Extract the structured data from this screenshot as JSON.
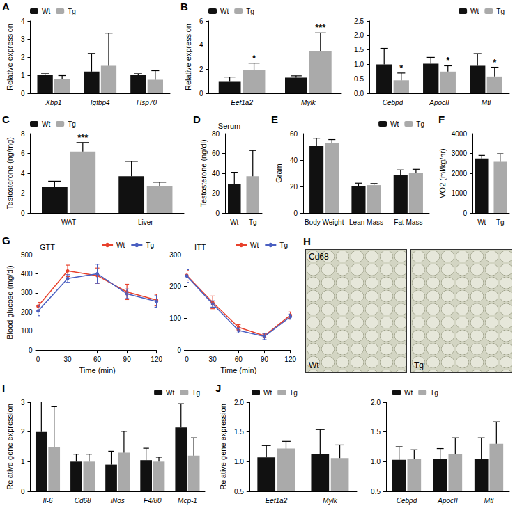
{
  "chart_data": [
    {
      "panel_label": "A",
      "type": "bar",
      "y_label": "Relative expression",
      "categories": [
        "Xbp1",
        "Igfbp4",
        "Hsp70"
      ],
      "series": [
        {
          "name": "Wt",
          "color": "#111111",
          "values": [
            1.0,
            1.2,
            1.0
          ],
          "errors": [
            0.08,
            1.0,
            0.08
          ]
        },
        {
          "name": "Tg",
          "color": "#aaaaaa",
          "values": [
            0.78,
            1.52,
            0.75
          ],
          "errors": [
            0.2,
            1.8,
            0.5
          ]
        }
      ],
      "ylim": [
        0,
        4
      ],
      "yticks": [
        0,
        1,
        2,
        3,
        4
      ],
      "grid": false,
      "legend": "upper-left"
    },
    {
      "panel_label": "B",
      "type": "bar",
      "y_label": "Relative expression",
      "categories": [
        "Eef1a2",
        "Mylk"
      ],
      "series": [
        {
          "name": "Wt",
          "color": "#111111",
          "values": [
            0.95,
            1.3
          ],
          "errors": [
            0.4,
            0.15
          ]
        },
        {
          "name": "Tg",
          "color": "#aaaaaa",
          "values": [
            1.9,
            3.5
          ],
          "errors": [
            0.6,
            1.5
          ]
        }
      ],
      "annotations": [
        {
          "category": "Eef1a2",
          "series": "Tg",
          "text": "*"
        },
        {
          "category": "Mylk",
          "series": "Tg",
          "text": "***"
        }
      ],
      "ylim": [
        0,
        6
      ],
      "yticks": [
        0,
        2,
        4,
        6
      ],
      "grid": false,
      "legend": "upper-left"
    },
    {
      "type": "bar",
      "categories": [
        "Cebpd",
        "ApocII",
        "Mtl"
      ],
      "series": [
        {
          "name": "Wt",
          "color": "#111111",
          "values": [
            1.0,
            1.02,
            0.95
          ],
          "errors": [
            0.55,
            0.22,
            0.42
          ]
        },
        {
          "name": "Tg",
          "color": "#aaaaaa",
          "values": [
            0.45,
            0.75,
            0.58
          ],
          "errors": [
            0.25,
            0.2,
            0.32
          ]
        }
      ],
      "annotations": [
        {
          "category": "Cebpd",
          "series": "Tg",
          "text": "*"
        },
        {
          "category": "ApocII",
          "series": "Tg",
          "text": "*"
        },
        {
          "category": "Mtl",
          "series": "Tg",
          "text": "*"
        }
      ],
      "ylim": [
        0,
        2.5
      ],
      "yticks": [
        {
          "value": 0,
          "label": "0.0"
        },
        0.5,
        {
          "value": 1,
          "label": "1.0"
        },
        1.5,
        {
          "value": 2,
          "label": "2.0"
        },
        2.5
      ],
      "grid": false,
      "legend": "upper-right"
    },
    {
      "panel_label": "C",
      "type": "bar",
      "y_label": "Testosterone (ng/mg)",
      "categories": [
        "WAT",
        "Liver"
      ],
      "series": [
        {
          "name": "Wt",
          "color": "#111111",
          "values": [
            2.6,
            3.7
          ],
          "errors": [
            0.6,
            1.5
          ]
        },
        {
          "name": "Tg",
          "color": "#aaaaaa",
          "values": [
            6.2,
            2.7
          ],
          "errors": [
            0.9,
            0.4
          ]
        }
      ],
      "annotations": [
        {
          "category": "WAT",
          "series": "Tg",
          "text": "***"
        }
      ],
      "ylim": [
        0,
        8
      ],
      "yticks": [
        0,
        2,
        4,
        6,
        8
      ],
      "grid": false,
      "legend": "upper-left"
    },
    {
      "panel_label": "D",
      "type": "bar",
      "title": "Serum",
      "y_label": "Testosterone (ng/dl)",
      "categories": [
        "Wt",
        "Tg"
      ],
      "values": [
        29,
        37
      ],
      "errors": [
        12,
        26
      ],
      "colors": [
        "#111111",
        "#aaaaaa"
      ],
      "ylim": [
        0,
        80
      ],
      "yticks": [
        0,
        20,
        40,
        60,
        80
      ],
      "grid": false
    },
    {
      "panel_label": "E",
      "type": "bar",
      "y_label": "Gram",
      "categories": [
        "Body Weight",
        "Lean Mass",
        "Fat Mass"
      ],
      "series": [
        {
          "name": "Wt",
          "color": "#111111",
          "values": [
            50.5,
            20.5,
            29
          ],
          "errors": [
            6,
            2,
            3.5
          ]
        },
        {
          "name": "Tg",
          "color": "#aaaaaa",
          "values": [
            53,
            21,
            30.5
          ],
          "errors": [
            2.5,
            1.2,
            2.5
          ]
        }
      ],
      "ylim": [
        0,
        60
      ],
      "yticks": [
        0,
        20,
        40,
        60
      ],
      "grid": false,
      "legend": "upper-right"
    },
    {
      "panel_label": "F",
      "type": "bar",
      "y_label": "VO2 (ml/kg/hr)",
      "categories": [
        "Wt",
        "Tg"
      ],
      "values": [
        2750,
        2580
      ],
      "errors": [
        150,
        400
      ],
      "colors": [
        "#111111",
        "#aaaaaa"
      ],
      "ylim": [
        0,
        4000
      ],
      "yticks": [
        0,
        1000,
        2000,
        3000,
        4000
      ],
      "grid": false
    },
    {
      "panel_label": "G",
      "type": "line",
      "title": "GTT",
      "y_label": "Blood glucose (mg/dl)",
      "x_label": "Time (min)",
      "x": [
        0,
        30,
        60,
        90,
        120
      ],
      "marker": "circle",
      "series": [
        {
          "name": "Wt",
          "color": "#e8412c",
          "values": [
            230,
            415,
            390,
            305,
            262
          ],
          "errors": [
            20,
            30,
            40,
            40,
            30
          ]
        },
        {
          "name": "Tg",
          "color": "#4a5fc1",
          "values": [
            205,
            375,
            400,
            295,
            255
          ],
          "errors": [
            25,
            20,
            50,
            25,
            30
          ]
        }
      ],
      "xlim": [
        0,
        120
      ],
      "xticks": [
        0,
        30,
        60,
        90,
        120
      ],
      "ylim": [
        0,
        500
      ],
      "yticks": [
        0,
        100,
        200,
        300,
        400,
        500
      ],
      "grid": false,
      "legend": "upper-right"
    },
    {
      "type": "line",
      "title": "ITT",
      "x_label": "Time (min)",
      "x": [
        0,
        30,
        60,
        90,
        120
      ],
      "marker": "circle",
      "series": [
        {
          "name": "Wt",
          "color": "#e8412c",
          "values": [
            235,
            150,
            72,
            45,
            110
          ],
          "errors": [
            15,
            20,
            8,
            6,
            10
          ]
        },
        {
          "name": "Tg",
          "color": "#4a5fc1",
          "values": [
            233,
            145,
            62,
            43,
            105
          ],
          "errors": [
            20,
            10,
            8,
            10,
            8
          ]
        }
      ],
      "xlim": [
        0,
        120
      ],
      "xticks": [
        0,
        30,
        60,
        90,
        120
      ],
      "ylim": [
        0,
        300
      ],
      "yticks": [
        0,
        100,
        200,
        300
      ],
      "grid": false,
      "legend": "upper-right"
    },
    {
      "panel_label": "I",
      "type": "bar",
      "y_label": "Relative gene expression",
      "categories": [
        "Il-6",
        "Cd68",
        "iNos",
        "F4/80",
        "Mcp-1"
      ],
      "series": [
        {
          "name": "Wt",
          "color": "#111111",
          "values": [
            2.0,
            1.0,
            0.9,
            1.05,
            2.15
          ],
          "errors": [
            1.6,
            0.25,
            0.45,
            0.4,
            0.8
          ]
        },
        {
          "name": "Tg",
          "color": "#aaaaaa",
          "values": [
            1.5,
            1.0,
            1.3,
            1.0,
            1.2
          ],
          "errors": [
            1.35,
            0.25,
            0.72,
            0.15,
            0.6
          ]
        }
      ],
      "ylim": [
        0,
        3
      ],
      "yticks": [
        0,
        1,
        2,
        3
      ],
      "grid": false,
      "legend": "upper-right"
    },
    {
      "panel_label": "J",
      "type": "bar",
      "y_label": "Relative gene expression",
      "categories": [
        "Eef1a2",
        "Mylk"
      ],
      "series": [
        {
          "name": "Wt",
          "color": "#111111",
          "values": [
            1.07,
            1.12
          ],
          "errors": [
            0.2,
            0.42
          ]
        },
        {
          "name": "Tg",
          "color": "#aaaaaa",
          "values": [
            1.22,
            1.06
          ],
          "errors": [
            0.12,
            0.22
          ]
        }
      ],
      "ylim": [
        0.5,
        2
      ],
      "yticks": [
        0.5,
        {
          "value": 1,
          "label": "1.0"
        },
        1.5,
        {
          "value": 2,
          "label": "2.0"
        }
      ],
      "grid": false,
      "legend": "upper-left"
    },
    {
      "type": "bar",
      "categories": [
        "Cebpd",
        "ApocII",
        "Mtl"
      ],
      "series": [
        {
          "name": "Wt",
          "color": "#111111",
          "values": [
            1.03,
            1.05,
            1.05
          ],
          "errors": [
            0.22,
            0.17,
            0.35
          ]
        },
        {
          "name": "Tg",
          "color": "#aaaaaa",
          "values": [
            1.05,
            1.12,
            1.3
          ],
          "errors": [
            0.15,
            0.28,
            0.37
          ]
        }
      ],
      "ylim": [
        0.5,
        2
      ],
      "yticks": [
        0.5,
        {
          "value": 1,
          "label": "1.0"
        },
        1.5,
        {
          "value": 2,
          "label": "2.0"
        }
      ],
      "grid": false,
      "legend": "upper-left"
    }
  ],
  "image_panel": {
    "panel_label": "H",
    "stain_label": "Cd68",
    "images": [
      "Wt",
      "Tg"
    ]
  }
}
